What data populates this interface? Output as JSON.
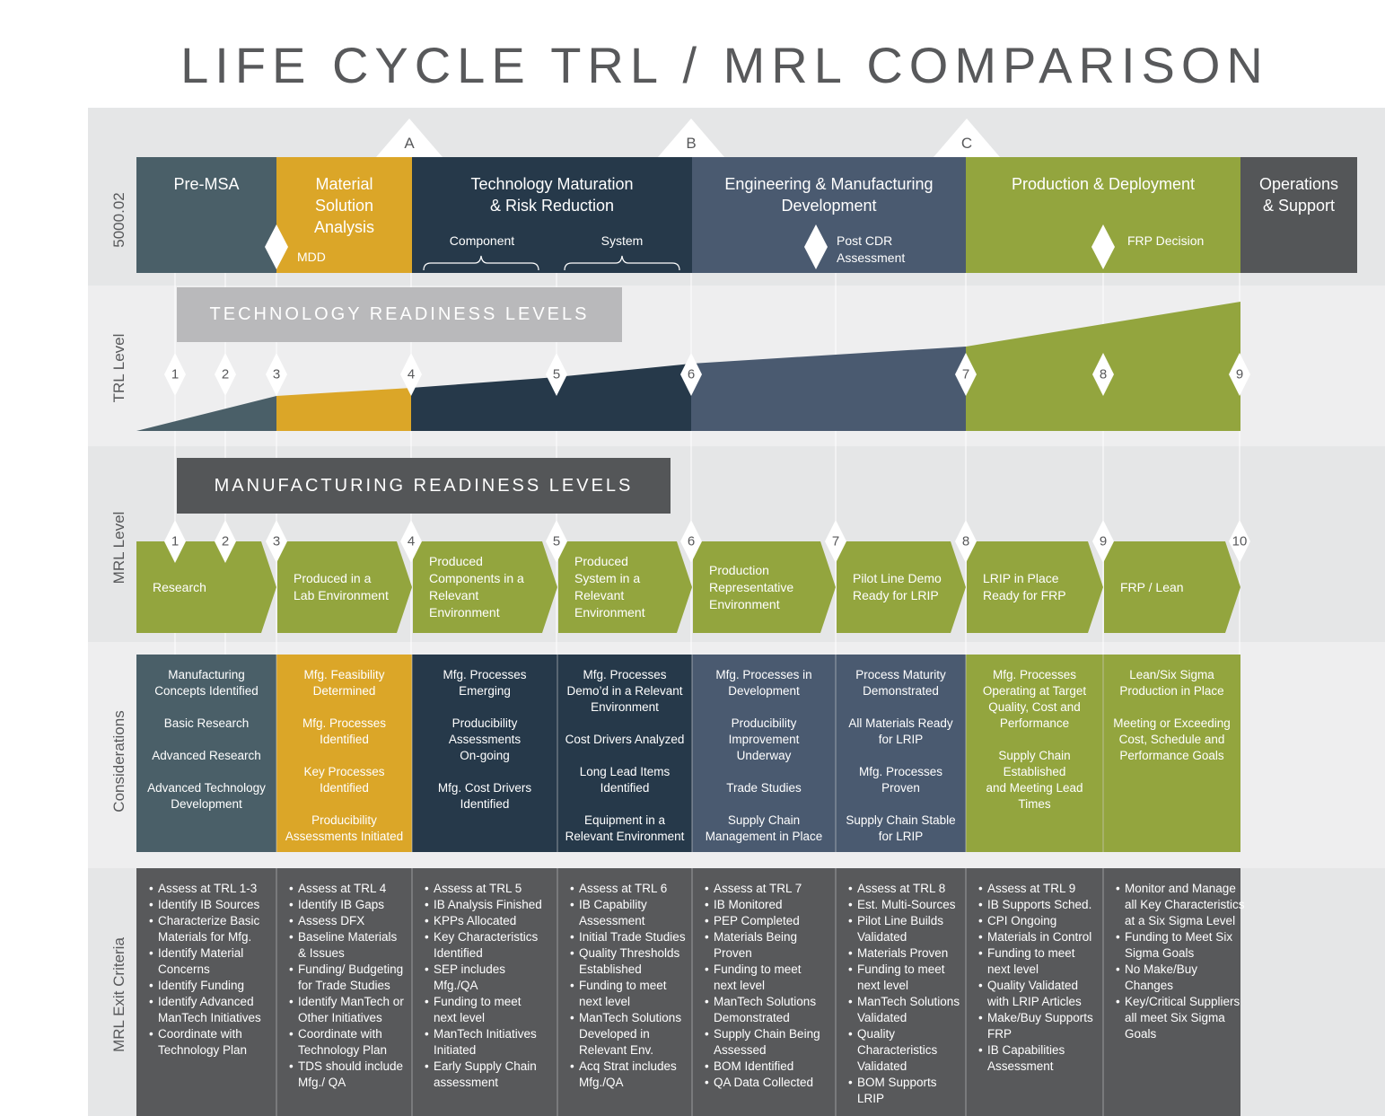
{
  "title": "LIFE CYCLE TRL / MRL COMPARISON",
  "row_labels": [
    "5000.02",
    "TRL Level",
    "MRL Level",
    "Considerations",
    "MRL Exit Criteria"
  ],
  "milestones": [
    "A",
    "B",
    "C"
  ],
  "phases": [
    "Pre-MSA",
    "Material\nSolution\nAnalysis",
    "Technology Maturation\n& Risk Reduction",
    "Engineering & Manufacturing\nDevelopment",
    "Production & Deployment",
    "Operations\n& Support"
  ],
  "phase_notes": [
    "MDD",
    "Component",
    "System",
    "Post CDR\nAssessment",
    "FRP Decision"
  ],
  "trl": {
    "heading": "TECHNOLOGY READINESS LEVELS",
    "levels": [
      1,
      2,
      3,
      4,
      5,
      6,
      7,
      8,
      9
    ]
  },
  "mrl": {
    "heading": "MANUFACTURING READINESS LEVELS",
    "levels": [
      1,
      2,
      3,
      4,
      5,
      6,
      7,
      8,
      9,
      10
    ],
    "stages": [
      "Research",
      "Produced in a\nLab Environment",
      "Produced\nComponents in a\nRelevant\nEnvironment",
      "Produced\nSystem in a\nRelevant\nEnvironment",
      "Production\nRepresentative\nEnvironment",
      "Pilot Line Demo\nReady for LRIP",
      "LRIP in Place\nReady for FRP",
      "FRP / Lean"
    ]
  },
  "considerations": [
    [
      "Manufacturing\nConcepts Identified",
      "Basic Research",
      "Advanced Research",
      "Advanced Technology\nDevelopment"
    ],
    [
      "Mfg. Feasibility\nDetermined",
      "Mfg. Processes\nIdentified",
      "Key Processes\nIdentified",
      "Producibility\nAssessments Initiated"
    ],
    [
      "Mfg. Processes\nEmerging",
      "Producibility\nAssessments\nOn-going",
      "Mfg. Cost Drivers\nIdentified"
    ],
    [
      "Mfg. Processes\nDemo’d in a Relevant\nEnvironment",
      "Cost Drivers Analyzed",
      "Long Lead Items\nIdentified",
      "Equipment in a\nRelevant Environment"
    ],
    [
      "Mfg. Processes in\nDevelopment",
      "Producibility\nImprovement\nUnderway",
      "Trade Studies",
      "Supply Chain\nManagement in Place"
    ],
    [
      "Process Maturity\nDemonstrated",
      "All Materials Ready\nfor LRIP",
      "Mfg. Processes\nProven",
      "Supply Chain Stable\nfor LRIP"
    ],
    [
      "Mfg. Processes\nOperating at Target\nQuality, Cost and\nPerformance",
      "Supply Chain\nEstablished\nand Meeting Lead\nTimes"
    ],
    [
      "Lean/Six Sigma\nProduction in Place",
      "Meeting or Exceeding\nCost, Schedule and\nPerformance Goals"
    ]
  ],
  "exit_criteria": [
    [
      "Assess at TRL 1-3",
      "Identify IB Sources",
      "Characterize Basic\nMaterials for Mfg.",
      "Identify Material\nConcerns",
      "Identify Funding",
      "Identify Advanced\nManTech Initiatives",
      "Coordinate with\nTechnology Plan"
    ],
    [
      "Assess at TRL 4",
      "Identify IB Gaps",
      "Assess DFX",
      "Baseline Materials\n& Issues",
      "Funding/ Budgeting\nfor Trade Studies",
      "Identify ManTech or\nOther Initiatives",
      "Coordinate with\nTechnology Plan",
      "TDS should include\nMfg./ QA"
    ],
    [
      "Assess at TRL 5",
      "IB Analysis Finished",
      "KPPs Allocated",
      "Key Characteristics\nIdentified",
      "SEP includes\nMfg./QA",
      "Funding to meet\nnext level",
      "ManTech Initiatives\nInitiated",
      "Early Supply Chain\nassessment"
    ],
    [
      "Assess at TRL 6",
      "IB Capability\nAssessment",
      "Initial Trade Studies",
      "Quality Thresholds\nEstablished",
      "Funding to meet\nnext level",
      "ManTech Solutions\nDeveloped in\nRelevant Env.",
      "Acq Strat includes\nMfg./QA"
    ],
    [
      "Assess at TRL 7",
      "IB Monitored",
      "PEP Completed",
      "Materials Being\nProven",
      "Funding to meet\nnext level",
      "ManTech Solutions\nDemonstrated",
      "Supply Chain Being\nAssessed",
      "BOM Identified",
      "QA Data Collected"
    ],
    [
      "Assess at TRL 8",
      "Est. Multi-Sources",
      "Pilot Line Builds\nValidated",
      "Materials Proven",
      "Funding to meet\nnext level",
      "ManTech Solutions\nValidated",
      "Quality\nCharacteristics\nValidated",
      "BOM Supports\nLRIP"
    ],
    [
      "Assess at TRL 9",
      "IB Supports Sched.",
      "CPI Ongoing",
      "Materials in Control",
      "Funding to meet\nnext level",
      "Quality Validated\nwith LRIP Articles",
      "Make/Buy Supports\nFRP",
      "IB Capabilities\nAssessment"
    ],
    [
      "Monitor and Manage\nall Key Characteristics\nat a Six Sigma Level",
      "Funding to Meet Six\nSigma Goals",
      "No Make/Buy\nChanges",
      "Key/Critical Suppliers\nall meet Six Sigma\nGoals"
    ]
  ]
}
